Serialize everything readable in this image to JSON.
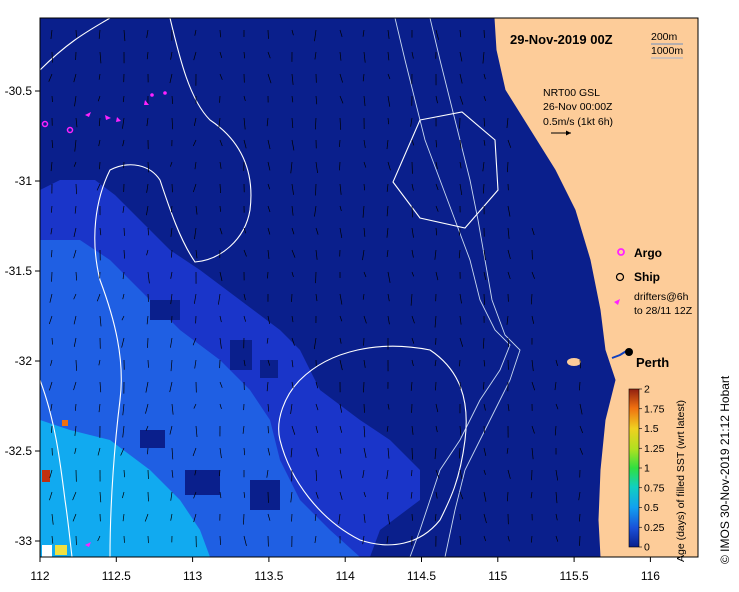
{
  "map": {
    "title": "29-Nov-2019 00Z",
    "depth_legend": [
      "200m",
      "1000m"
    ],
    "product": {
      "line1": "NRT00 GSL",
      "line2": "26-Nov 00:00Z",
      "line3": "0.5m/s (1kt 6h)"
    },
    "legend": {
      "argo": "Argo",
      "ship": "Ship",
      "drifters_line1": "drifters@6h",
      "drifters_line2": "to 28/11 12Z"
    },
    "city": "Perth",
    "x_ticks": [
      "112",
      "112.5",
      "113",
      "113.5",
      "114",
      "114.5",
      "115",
      "115.5",
      "116"
    ],
    "y_ticks": [
      "-30.5",
      "-31",
      "-31.5",
      "-32",
      "-32.5",
      "-33"
    ],
    "colorbar": {
      "label": "Age (days) of filled SST (wrt latest)",
      "ticks": [
        "2",
        "1.75",
        "1.5",
        "1.25",
        "1",
        "0.75",
        "0.5",
        "0.25",
        "0"
      ]
    },
    "credit": "© IMOS 30-Nov-2019 21:12 Hobart",
    "colors": {
      "ocean_deep": "#0a1f8c",
      "ocean_mid": "#1a35c9",
      "ocean_light": "#1f60e6",
      "ocean_cyan": "#11aaf0",
      "land": "#fdcc99"
    }
  }
}
